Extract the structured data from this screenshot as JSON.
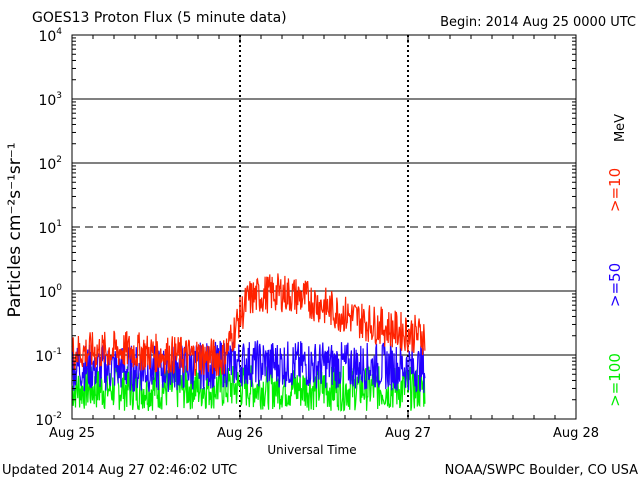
{
  "chart_data": {
    "type": "line",
    "title": "GOES13 Proton Flux (5 minute data)",
    "begin_label": "Begin: 2014 Aug 25 0000 UTC",
    "xlabel": "Universal Time",
    "ylabel": "Particles cm⁻²s⁻¹sr⁻¹",
    "y_scale": "log",
    "ylim": [
      0.01,
      10000
    ],
    "xlim": [
      0,
      3
    ],
    "x_ticks": [
      {
        "value": 0,
        "label": "Aug 25"
      },
      {
        "value": 1,
        "label": "Aug 26"
      },
      {
        "value": 2,
        "label": "Aug 27"
      },
      {
        "value": 3,
        "label": "Aug 28"
      }
    ],
    "y_ticks": [
      {
        "value": 0.01,
        "base": "10",
        "exp": "-2"
      },
      {
        "value": 0.1,
        "base": "10",
        "exp": "-1"
      },
      {
        "value": 1,
        "base": "10",
        "exp": "0"
      },
      {
        "value": 10,
        "base": "10",
        "exp": "1"
      },
      {
        "value": 100,
        "base": "10",
        "exp": "2"
      },
      {
        "value": 1000,
        "base": "10",
        "exp": "3"
      },
      {
        "value": 10000,
        "base": "10",
        "exp": "4"
      }
    ],
    "threshold_line": 10,
    "legend_unit": "MeV",
    "series": [
      {
        "name": ">=10",
        "color": "#ff2200",
        "x": [
          0,
          0.3,
          0.6,
          0.9,
          1.0,
          1.05,
          1.15,
          1.25,
          1.4,
          1.6,
          1.8,
          2.0,
          2.1
        ],
        "values": [
          0.11,
          0.12,
          0.1,
          0.09,
          0.4,
          0.75,
          0.9,
          0.95,
          0.75,
          0.45,
          0.3,
          0.22,
          0.2
        ]
      },
      {
        "name": ">=50",
        "color": "#2200ff",
        "x": [
          0,
          0.5,
          1.0,
          1.5,
          2.0,
          2.1
        ],
        "values": [
          0.065,
          0.06,
          0.075,
          0.07,
          0.065,
          0.06
        ]
      },
      {
        "name": ">=100",
        "color": "#00ee00",
        "x": [
          0,
          0.5,
          1.0,
          1.5,
          2.0,
          2.1
        ],
        "values": [
          0.03,
          0.03,
          0.032,
          0.03,
          0.03,
          0.03
        ]
      }
    ]
  },
  "footer": {
    "updated": "Updated 2014 Aug 27 02:46:02 UTC",
    "credit": "NOAA/SWPC Boulder, CO USA"
  },
  "colors": {
    "grid": "#000000",
    "background": "#ffffff"
  }
}
